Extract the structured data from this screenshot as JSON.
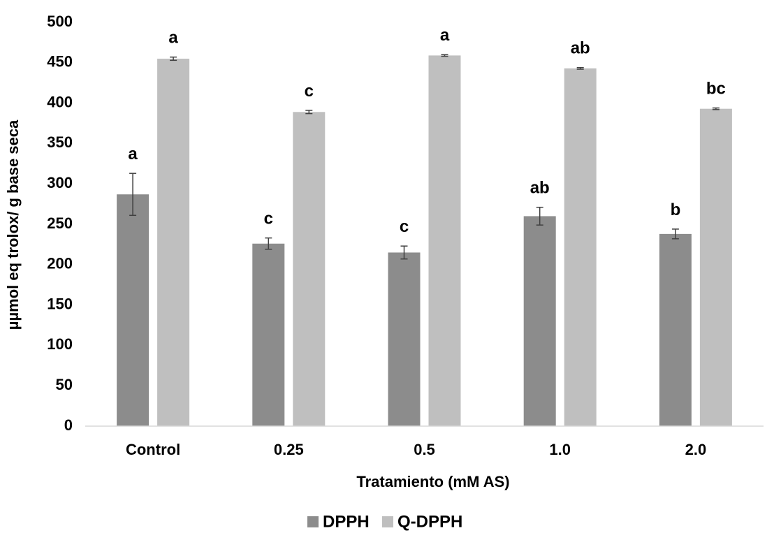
{
  "chart_data": {
    "type": "bar",
    "title": "",
    "xlabel": "Tratamiento (mM AS)",
    "ylabel": "µµmol eq trolox/ g base seca",
    "ylim": [
      0,
      500
    ],
    "yticks": [
      0,
      50,
      100,
      150,
      200,
      250,
      300,
      350,
      400,
      450,
      500
    ],
    "grid": false,
    "legend_position": "bottom",
    "categories": [
      "Control",
      "0.25",
      "0.5",
      "1.0",
      "2.0"
    ],
    "series": [
      {
        "name": "DPPH",
        "color": "#8c8c8c",
        "values": [
          287,
          226,
          215,
          260,
          238
        ],
        "errors": [
          26,
          7,
          8,
          11,
          6
        ],
        "labels": [
          "a",
          "c",
          "c",
          "ab",
          "b"
        ]
      },
      {
        "name": "Q-DPPH",
        "color": "#bfbfbf",
        "values": [
          455,
          389,
          459,
          443,
          393
        ],
        "errors": [
          2,
          2,
          1,
          1,
          1
        ],
        "labels": [
          "a",
          "c",
          "a",
          "ab",
          "bc"
        ]
      }
    ]
  }
}
